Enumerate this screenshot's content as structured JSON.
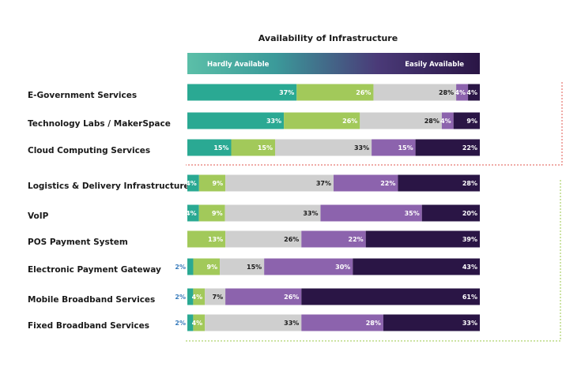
{
  "chart_data": {
    "type": "bar",
    "stacked": true,
    "orientation": "horizontal",
    "title": "Availability of Infrastructure",
    "legend": {
      "left_label": "Hardly Available",
      "right_label": "Easily Available"
    },
    "categories": [
      "E-Government Services",
      "Technology Labs / MakerSpace",
      "Cloud Computing Services",
      "Logistics & Delivery Infrastructure",
      "VoIP",
      "POS Payment System",
      "Electronic Payment Gateway",
      "Mobile Broadband Services",
      "Fixed Broadband Services"
    ],
    "series": [
      {
        "values": [
          37,
          33,
          15,
          4,
          4,
          0,
          2,
          2,
          2
        ]
      },
      {
        "values": [
          26,
          26,
          15,
          9,
          9,
          13,
          9,
          4,
          4
        ]
      },
      {
        "values": [
          28,
          28,
          33,
          37,
          33,
          26,
          15,
          7,
          33
        ]
      },
      {
        "values": [
          4,
          4,
          15,
          22,
          35,
          22,
          30,
          26,
          28
        ]
      },
      {
        "values": [
          4,
          9,
          22,
          28,
          20,
          39,
          43,
          61,
          33
        ]
      }
    ],
    "colors": [
      "#2aa993",
      "#a2c95a",
      "#cfcfcf",
      "#8c63ad",
      "#2a1545"
    ],
    "label_colors": [
      "#ffffff",
      "#ffffff",
      "#1a1a1a",
      "#ffffff",
      "#ffffff"
    ],
    "outside_label_color": "#3a7dbd",
    "grouping_colors": {
      "group1": "#e0574f",
      "group2": "#9bc94a"
    }
  }
}
